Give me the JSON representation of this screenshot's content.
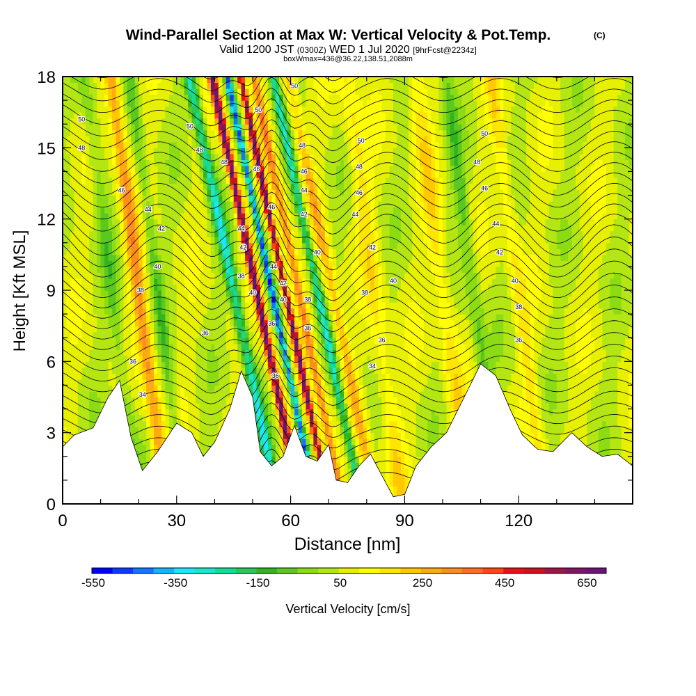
{
  "chart_data": {
    "type": "heatmap",
    "title": "Wind-Parallel Section at Max W: Vertical Velocity & Pot.Temp.",
    "copyright_mark": "(C)",
    "subtitle": {
      "valid_prefix": "Valid 1200 JST",
      "utc": "(0300Z)",
      "date": "WED 1 Jul 2020",
      "forecast": "[9hrFcst@2234z]"
    },
    "box_info": "boxWmax=436@36.22,138.51,2088m",
    "xlabel": "Distance [nm]",
    "ylabel": "Height [Kft MSL]",
    "xlim": [
      0,
      150
    ],
    "ylim": [
      0,
      18
    ],
    "x_ticks": [
      "0",
      "30",
      "60",
      "90",
      "120"
    ],
    "y_ticks": [
      "0",
      "3",
      "6",
      "9",
      "12",
      "15",
      "18"
    ],
    "colorbar": {
      "label": "Vertical Velocity [cm/s]",
      "tick_labels": [
        "-550",
        "-350",
        "-150",
        "50",
        "250",
        "450",
        "650"
      ],
      "colors": [
        "#0000ff",
        "#0a3cff",
        "#0f78ff",
        "#14b4ff",
        "#1ee6ff",
        "#1ee6c8",
        "#14dc96",
        "#28c85a",
        "#32b41e",
        "#5ac81e",
        "#8cdc14",
        "#b4e614",
        "#e6f000",
        "#ffff00",
        "#ffe600",
        "#ffc800",
        "#ffaa14",
        "#ff8c1e",
        "#ff6e1e",
        "#ff4614",
        "#e61414",
        "#c8141e",
        "#a01446",
        "#821464",
        "#6e1478"
      ]
    },
    "contour_field": "Pot.Temp.",
    "contour_labels": [
      {
        "x": 5,
        "y": 16.2,
        "text": "50"
      },
      {
        "x": 5,
        "y": 15.0,
        "text": "48"
      },
      {
        "x": 15.5,
        "y": 13.2,
        "text": "46"
      },
      {
        "x": 22.5,
        "y": 12.4,
        "text": "44"
      },
      {
        "x": 26,
        "y": 11.6,
        "text": "42"
      },
      {
        "x": 25,
        "y": 10.0,
        "text": "40"
      },
      {
        "x": 20.5,
        "y": 9.0,
        "text": "38"
      },
      {
        "x": 37.5,
        "y": 7.2,
        "text": "36"
      },
      {
        "x": 18.5,
        "y": 6.0,
        "text": "36"
      },
      {
        "x": 21,
        "y": 4.6,
        "text": "34"
      },
      {
        "x": 33.5,
        "y": 15.9,
        "text": "50"
      },
      {
        "x": 36,
        "y": 14.9,
        "text": "48"
      },
      {
        "x": 42.5,
        "y": 14.4,
        "text": "48"
      },
      {
        "x": 51.5,
        "y": 16.6,
        "text": "50"
      },
      {
        "x": 51,
        "y": 14.1,
        "text": "46"
      },
      {
        "x": 55,
        "y": 12.5,
        "text": "46"
      },
      {
        "x": 47,
        "y": 11.6,
        "text": "44"
      },
      {
        "x": 47.5,
        "y": 10.8,
        "text": "42"
      },
      {
        "x": 47,
        "y": 9.6,
        "text": "38"
      },
      {
        "x": 50,
        "y": 8.9,
        "text": "40"
      },
      {
        "x": 55.5,
        "y": 10.0,
        "text": "44"
      },
      {
        "x": 58,
        "y": 9.3,
        "text": "42"
      },
      {
        "x": 58,
        "y": 8.6,
        "text": "40"
      },
      {
        "x": 55,
        "y": 7.6,
        "text": "36"
      },
      {
        "x": 56,
        "y": 5.4,
        "text": "36"
      },
      {
        "x": 61,
        "y": 17.6,
        "text": "50"
      },
      {
        "x": 63,
        "y": 15.1,
        "text": "48"
      },
      {
        "x": 63.5,
        "y": 14.0,
        "text": "46"
      },
      {
        "x": 63.5,
        "y": 13.2,
        "text": "44"
      },
      {
        "x": 63.5,
        "y": 12.2,
        "text": "42"
      },
      {
        "x": 67,
        "y": 10.6,
        "text": "40"
      },
      {
        "x": 64.5,
        "y": 8.6,
        "text": "38"
      },
      {
        "x": 64.5,
        "y": 7.4,
        "text": "36"
      },
      {
        "x": 78.5,
        "y": 15.3,
        "text": "50"
      },
      {
        "x": 78,
        "y": 14.2,
        "text": "48"
      },
      {
        "x": 78,
        "y": 13.1,
        "text": "46"
      },
      {
        "x": 77,
        "y": 12.2,
        "text": "44"
      },
      {
        "x": 81.5,
        "y": 10.8,
        "text": "42"
      },
      {
        "x": 87,
        "y": 9.4,
        "text": "40"
      },
      {
        "x": 79.5,
        "y": 8.9,
        "text": "38"
      },
      {
        "x": 84,
        "y": 6.9,
        "text": "36"
      },
      {
        "x": 81.5,
        "y": 5.8,
        "text": "34"
      },
      {
        "x": 111,
        "y": 15.6,
        "text": "50"
      },
      {
        "x": 109,
        "y": 14.4,
        "text": "48"
      },
      {
        "x": 111,
        "y": 13.3,
        "text": "46"
      },
      {
        "x": 114,
        "y": 11.8,
        "text": "44"
      },
      {
        "x": 115,
        "y": 10.6,
        "text": "42"
      },
      {
        "x": 119,
        "y": 9.4,
        "text": "40"
      },
      {
        "x": 120,
        "y": 8.3,
        "text": "38"
      },
      {
        "x": 120,
        "y": 6.9,
        "text": "36"
      }
    ]
  }
}
